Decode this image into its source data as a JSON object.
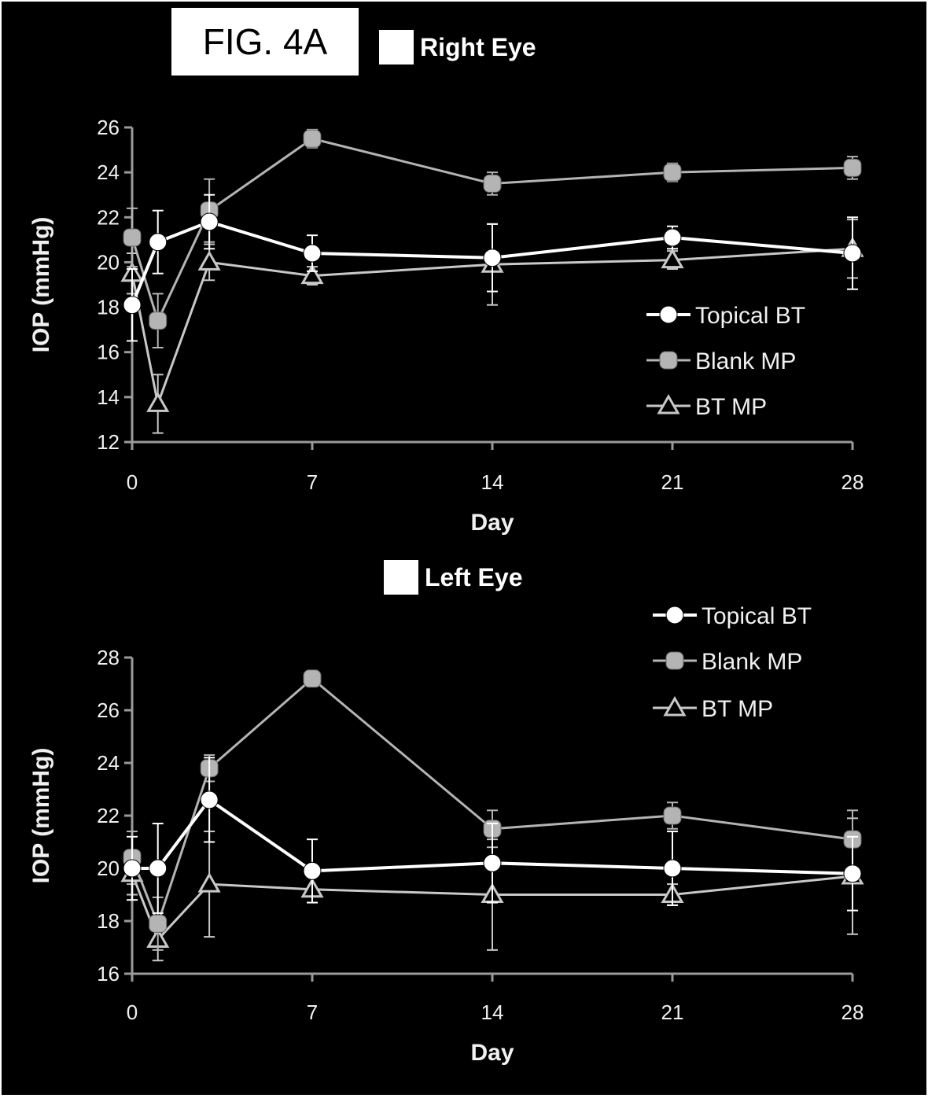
{
  "figure_label": "FIG. 4A",
  "colors": {
    "background": "#000000",
    "topical_bt": "#ffffff",
    "blank_mp": "#b4b4b4",
    "bt_mp": "#c8c8c8",
    "axis": "#9a9a9a"
  },
  "chart_data": [
    {
      "type": "line",
      "title": "Right Eye",
      "xlabel": "Day",
      "ylabel": "IOP (mmHg)",
      "xlim": [
        0,
        28
      ],
      "ylim": [
        12,
        26
      ],
      "xticks": [
        0,
        7,
        14,
        21,
        28
      ],
      "yticks": [
        12,
        14,
        16,
        18,
        20,
        22,
        24,
        26
      ],
      "x": [
        0,
        1,
        3,
        7,
        14,
        21,
        28
      ],
      "legend_position": "right",
      "series": [
        {
          "name": "Topical BT",
          "marker": "circle",
          "values": [
            18.1,
            20.9,
            21.8,
            20.4,
            20.2,
            21.1,
            20.4
          ],
          "err": [
            1.6,
            1.4,
            1.2,
            0.8,
            1.5,
            0.5,
            1.6
          ]
        },
        {
          "name": "Blank MP",
          "marker": "square",
          "values": [
            21.1,
            17.4,
            22.3,
            25.5,
            23.5,
            24.0,
            24.2
          ],
          "err": [
            1.3,
            1.2,
            1.4,
            0.4,
            0.5,
            0.4,
            0.5
          ]
        },
        {
          "name": "BT MP",
          "marker": "triangle",
          "values": [
            19.5,
            13.7,
            20.0,
            19.4,
            19.9,
            20.1,
            20.6
          ],
          "err": [
            0.9,
            1.3,
            0.8,
            0.4,
            1.8,
            0.4,
            1.3
          ]
        }
      ]
    },
    {
      "type": "line",
      "title": "Left Eye",
      "xlabel": "Day",
      "ylabel": "IOP (mmHg)",
      "xlim": [
        0,
        28
      ],
      "ylim": [
        16,
        28
      ],
      "xticks": [
        0,
        7,
        14,
        21,
        28
      ],
      "yticks": [
        16,
        18,
        20,
        22,
        24,
        26,
        28
      ],
      "x": [
        0,
        1,
        3,
        7,
        14,
        21,
        28
      ],
      "legend_position": "top-right",
      "series": [
        {
          "name": "Topical BT",
          "marker": "circle",
          "values": [
            20.0,
            20.0,
            22.6,
            19.9,
            20.2,
            20.0,
            19.8
          ],
          "err": [
            1.2,
            1.7,
            1.6,
            1.2,
            1.5,
            1.4,
            1.4
          ]
        },
        {
          "name": "Blank MP",
          "marker": "square",
          "values": [
            20.4,
            17.9,
            23.8,
            27.2,
            21.5,
            22.0,
            21.1
          ],
          "err": [
            1.0,
            1.0,
            0.5,
            0.3,
            0.7,
            0.5,
            1.1
          ]
        },
        {
          "name": "BT MP",
          "marker": "triangle",
          "values": [
            19.8,
            17.3,
            19.4,
            19.2,
            19.0,
            19.0,
            19.7
          ],
          "err": [
            0.8,
            0.8,
            2.0,
            0.5,
            2.1,
            0.4,
            2.2
          ]
        }
      ]
    }
  ]
}
